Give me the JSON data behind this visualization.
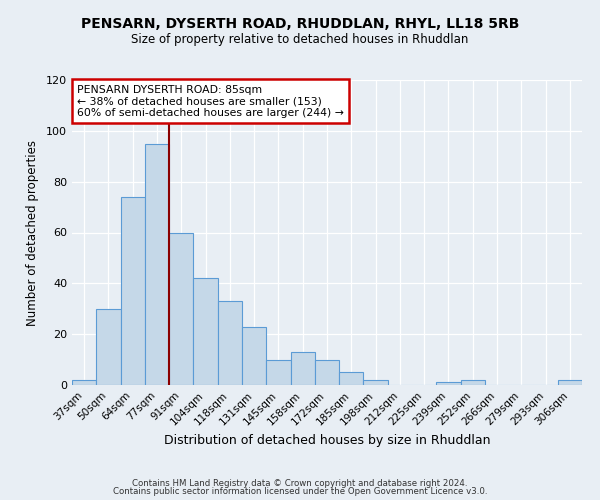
{
  "title1": "PENSARN, DYSERTH ROAD, RHUDDLAN, RHYL, LL18 5RB",
  "title2": "Size of property relative to detached houses in Rhuddlan",
  "xlabel": "Distribution of detached houses by size in Rhuddlan",
  "ylabel": "Number of detached properties",
  "footer1": "Contains HM Land Registry data © Crown copyright and database right 2024.",
  "footer2": "Contains public sector information licensed under the Open Government Licence v3.0.",
  "bin_labels": [
    "37sqm",
    "50sqm",
    "64sqm",
    "77sqm",
    "91sqm",
    "104sqm",
    "118sqm",
    "131sqm",
    "145sqm",
    "158sqm",
    "172sqm",
    "185sqm",
    "198sqm",
    "212sqm",
    "225sqm",
    "239sqm",
    "252sqm",
    "266sqm",
    "279sqm",
    "293sqm",
    "306sqm"
  ],
  "bar_values": [
    2,
    30,
    74,
    95,
    60,
    42,
    33,
    23,
    10,
    13,
    10,
    5,
    2,
    0,
    0,
    1,
    2,
    0,
    0,
    0,
    2
  ],
  "bar_color": "#c5d8e8",
  "bar_edge_color": "#5b9bd5",
  "marker_bin_index": 4,
  "marker_color": "#8b0000",
  "annotation_title": "PENSARN DYSERTH ROAD: 85sqm",
  "annotation_line1": "← 38% of detached houses are smaller (153)",
  "annotation_line2": "60% of semi-detached houses are larger (244) →",
  "annotation_box_color": "#ffffff",
  "annotation_box_edge_color": "#cc0000",
  "ylim": [
    0,
    120
  ],
  "yticks": [
    0,
    20,
    40,
    60,
    80,
    100,
    120
  ],
  "bg_color": "#e8eef4",
  "grid_color": "#ffffff"
}
